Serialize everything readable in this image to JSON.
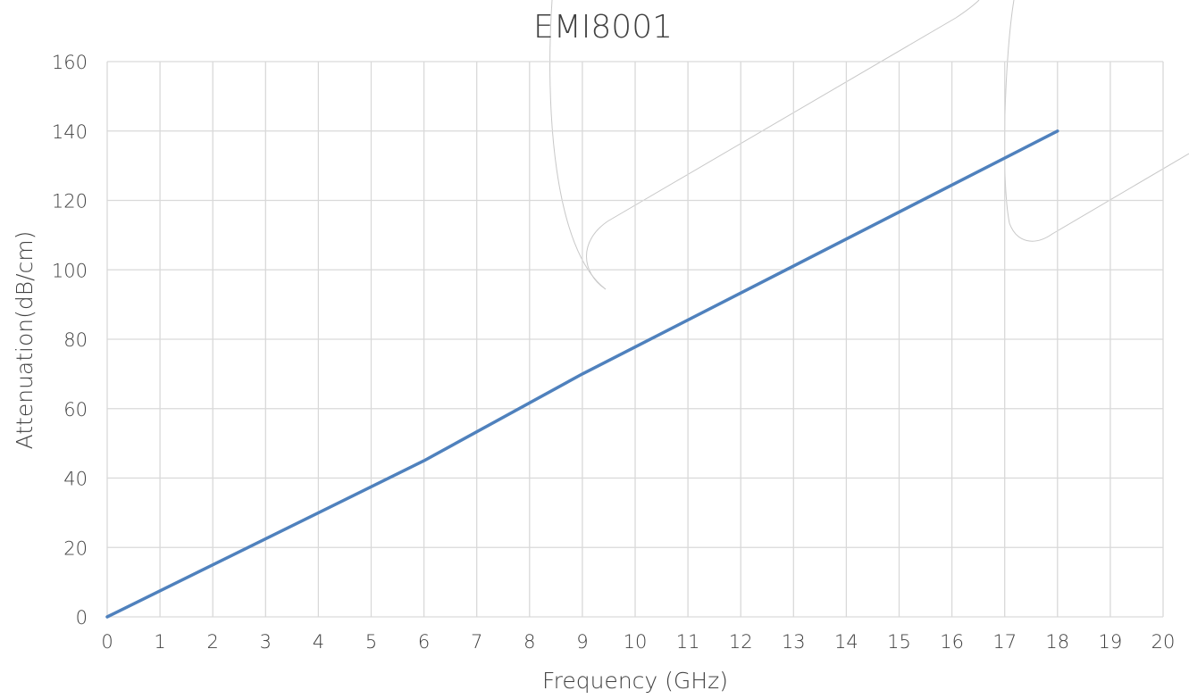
{
  "chart_data": {
    "type": "line",
    "title": "EMI8001",
    "xlabel": "Frequency (GHz)",
    "ylabel": "Attenuation(dB/cm)",
    "xlim": [
      0,
      20
    ],
    "ylim": [
      0,
      160
    ],
    "x_ticks": [
      0,
      1,
      2,
      3,
      4,
      5,
      6,
      7,
      8,
      9,
      10,
      11,
      12,
      13,
      14,
      15,
      16,
      17,
      18,
      19,
      20
    ],
    "y_ticks": [
      0,
      20,
      40,
      60,
      80,
      100,
      120,
      140,
      160
    ],
    "grid": true,
    "legend": "none",
    "series": [
      {
        "color": "#4f81bd",
        "x": [
          0,
          6,
          9,
          18
        ],
        "y": [
          0,
          45,
          70,
          140
        ]
      }
    ]
  }
}
